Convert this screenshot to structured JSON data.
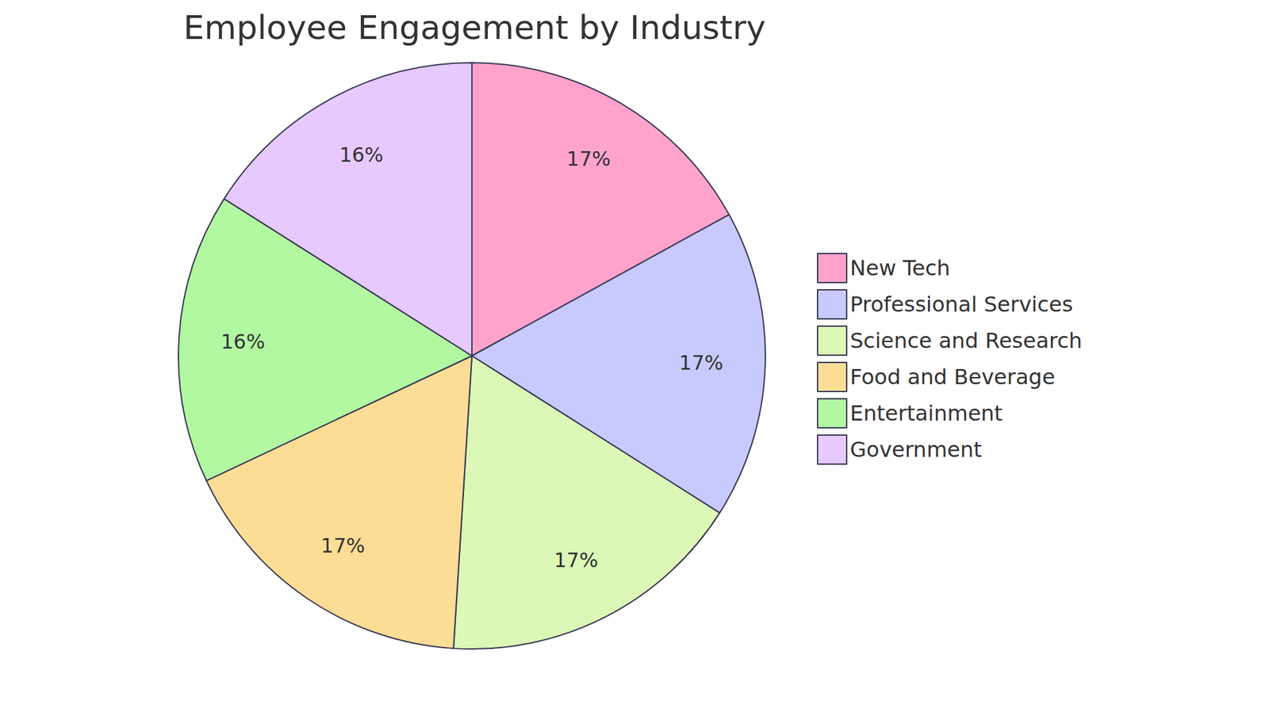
{
  "chart_data": {
    "type": "pie",
    "title": "Employee Engagement by Industry",
    "categories": [
      "New Tech",
      "Professional Services",
      "Science and Research",
      "Food and Beverage",
      "Entertainment",
      "Government"
    ],
    "values": [
      17,
      17,
      17,
      17,
      16,
      16
    ],
    "value_labels": [
      "17%",
      "17%",
      "17%",
      "17%",
      "16%",
      "16%"
    ],
    "colors": [
      "#ffa3cd",
      "#c8caff",
      "#dcf8b7",
      "#fddd96",
      "#b2f8a1",
      "#e6caff"
    ],
    "legend": "right",
    "data_labels": true
  }
}
